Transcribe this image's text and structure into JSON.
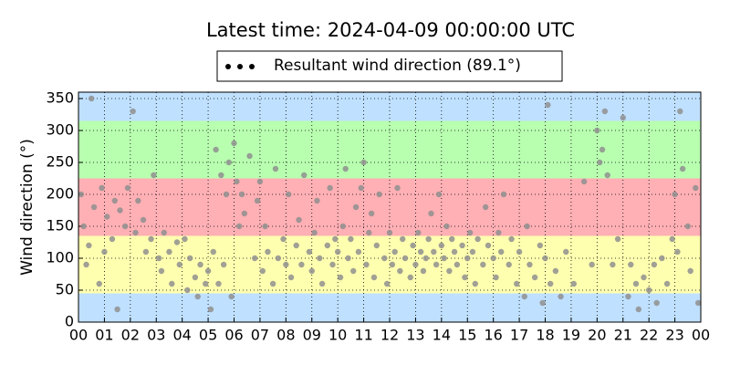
{
  "chart_data": {
    "type": "scatter",
    "title": "Latest time: 2024-04-09 00:00:00 UTC",
    "y_label": "Wind direction (°)",
    "xlim": [
      0,
      24
    ],
    "ylim": [
      0,
      360
    ],
    "xticks": [
      {
        "value": 0,
        "label": "00"
      },
      {
        "value": 1,
        "label": "01"
      },
      {
        "value": 2,
        "label": "02"
      },
      {
        "value": 3,
        "label": "03"
      },
      {
        "value": 4,
        "label": "04"
      },
      {
        "value": 5,
        "label": "05"
      },
      {
        "value": 6,
        "label": "06"
      },
      {
        "value": 7,
        "label": "07"
      },
      {
        "value": 8,
        "label": "08"
      },
      {
        "value": 9,
        "label": "09"
      },
      {
        "value": 10,
        "label": "10"
      },
      {
        "value": 11,
        "label": "11"
      },
      {
        "value": 12,
        "label": "12"
      },
      {
        "value": 13,
        "label": "13"
      },
      {
        "value": 14,
        "label": "14"
      },
      {
        "value": 15,
        "label": "15"
      },
      {
        "value": 16,
        "label": "16"
      },
      {
        "value": 17,
        "label": "17"
      },
      {
        "value": 18,
        "label": "18"
      },
      {
        "value": 19,
        "label": "19"
      },
      {
        "value": 20,
        "label": "20"
      },
      {
        "value": 21,
        "label": "21"
      },
      {
        "value": 22,
        "label": "22"
      },
      {
        "value": 23,
        "label": "23"
      },
      {
        "value": 24,
        "label": "00"
      }
    ],
    "yticks": [
      0,
      50,
      100,
      150,
      200,
      250,
      300,
      350
    ],
    "grid": true,
    "legend": "top",
    "bands": [
      {
        "from": 0,
        "to": 45,
        "color": "#bfe0ff"
      },
      {
        "from": 45,
        "to": 135,
        "color": "#ffffb0"
      },
      {
        "from": 135,
        "to": 225,
        "color": "#ffb0b5"
      },
      {
        "from": 225,
        "to": 315,
        "color": "#b8ffb0"
      },
      {
        "from": 315,
        "to": 360,
        "color": "#bfe0ff"
      }
    ],
    "x": [
      0.1,
      0.2,
      0.3,
      0.4,
      0.5,
      0.6,
      0.8,
      0.9,
      1.0,
      1.1,
      1.3,
      1.4,
      1.5,
      1.6,
      1.8,
      1.9,
      2.1,
      2.2,
      2.3,
      2.5,
      2.6,
      2.8,
      2.9,
      3.1,
      3.2,
      3.3,
      3.5,
      3.6,
      3.8,
      3.9,
      4.1,
      4.2,
      4.3,
      4.5,
      4.6,
      4.7,
      4.9,
      5.0,
      5.1,
      5.2,
      5.3,
      5.4,
      5.5,
      5.6,
      5.7,
      5.8,
      5.9,
      6.0,
      6.1,
      6.2,
      6.3,
      6.4,
      6.6,
      6.8,
      6.9,
      7.0,
      7.1,
      7.2,
      7.3,
      7.5,
      7.6,
      7.7,
      7.9,
      8.0,
      8.1,
      8.2,
      8.4,
      8.5,
      8.6,
      8.7,
      8.9,
      9.0,
      9.1,
      9.2,
      9.3,
      9.4,
      9.6,
      9.7,
      9.8,
      9.9,
      10.0,
      10.1,
      10.2,
      10.3,
      10.4,
      10.5,
      10.6,
      10.7,
      10.8,
      10.9,
      11.0,
      11.1,
      11.2,
      11.3,
      11.4,
      11.5,
      11.6,
      11.8,
      11.9,
      12.0,
      12.1,
      12.2,
      12.3,
      12.4,
      12.5,
      12.6,
      12.8,
      12.9,
      13.0,
      13.1,
      13.2,
      13.3,
      13.4,
      13.5,
      13.6,
      13.7,
      13.8,
      13.9,
      14.0,
      14.1,
      14.2,
      14.3,
      14.4,
      14.5,
      14.6,
      14.8,
      14.9,
      15.0,
      15.1,
      15.2,
      15.3,
      15.4,
      15.6,
      15.7,
      15.8,
      16.0,
      16.1,
      16.2,
      16.3,
      16.4,
      16.6,
      16.7,
      16.9,
      17.0,
      17.2,
      17.3,
      17.4,
      17.6,
      17.8,
      17.9,
      18.0,
      18.1,
      18.2,
      18.4,
      18.6,
      18.8,
      19.1,
      19.5,
      19.8,
      20.0,
      20.1,
      20.2,
      20.3,
      20.4,
      20.6,
      20.8,
      21.0,
      21.2,
      21.3,
      21.5,
      21.6,
      21.8,
      22.0,
      22.2,
      22.3,
      22.5,
      22.7,
      22.9,
      23.0,
      23.1,
      23.2,
      23.3,
      23.5,
      23.6,
      23.8,
      23.9
    ],
    "series": [
      {
        "name": "Resultant wind direction (89.1°)",
        "color": "#8f8f8f",
        "legend_color": "#000000",
        "values": [
          200,
          150,
          90,
          120,
          350,
          180,
          60,
          210,
          110,
          165,
          130,
          190,
          20,
          175,
          150,
          210,
          330,
          140,
          190,
          160,
          110,
          130,
          230,
          100,
          80,
          140,
          110,
          60,
          125,
          90,
          130,
          50,
          100,
          70,
          40,
          90,
          60,
          80,
          20,
          110,
          270,
          60,
          230,
          90,
          200,
          250,
          40,
          280,
          220,
          150,
          200,
          170,
          260,
          100,
          190,
          220,
          80,
          150,
          110,
          60,
          240,
          100,
          130,
          90,
          200,
          70,
          120,
          160,
          90,
          230,
          110,
          80,
          140,
          190,
          100,
          60,
          120,
          210,
          90,
          130,
          110,
          70,
          150,
          240,
          100,
          130,
          80,
          180,
          110,
          210,
          250,
          90,
          140,
          170,
          70,
          120,
          200,
          100,
          60,
          140,
          90,
          110,
          210,
          80,
          130,
          100,
          70,
          120,
          90,
          140,
          110,
          80,
          100,
          130,
          170,
          110,
          90,
          200,
          120,
          100,
          150,
          80,
          130,
          110,
          90,
          120,
          70,
          100,
          140,
          110,
          60,
          130,
          90,
          180,
          120,
          100,
          70,
          140,
          110,
          200,
          90,
          130,
          60,
          110,
          40,
          150,
          90,
          70,
          120,
          30,
          100,
          340,
          60,
          80,
          40,
          110,
          60,
          220,
          90,
          300,
          250,
          270,
          330,
          230,
          90,
          130,
          320,
          40,
          90,
          60,
          20,
          70,
          50,
          90,
          30,
          100,
          60,
          130,
          200,
          110,
          330,
          240,
          150,
          80,
          210,
          30
        ]
      }
    ]
  }
}
